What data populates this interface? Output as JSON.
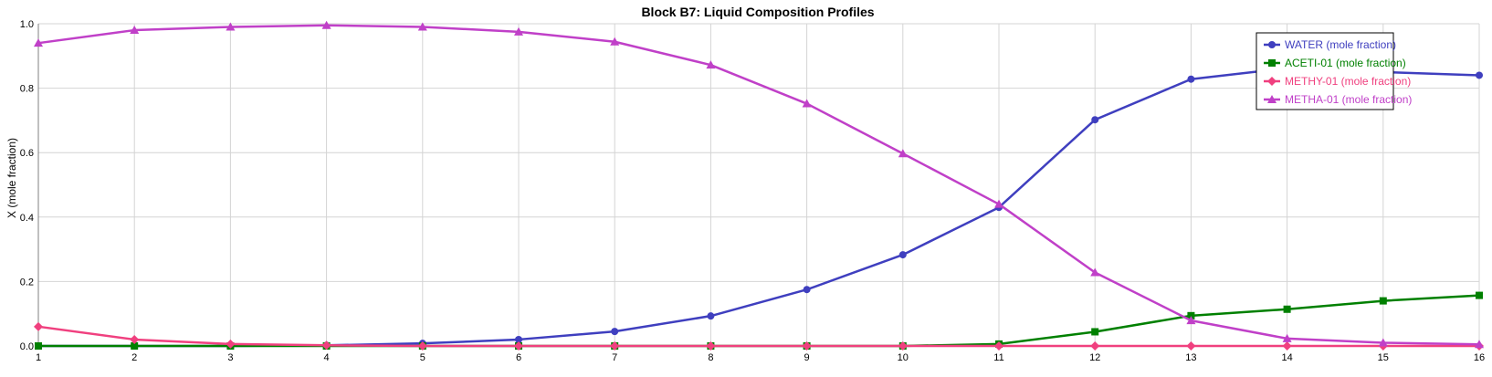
{
  "chart_data": {
    "type": "line",
    "title": "Block B7: Liquid Composition Profiles",
    "xlabel": "",
    "ylabel": "X (mole fraction)",
    "x": [
      1,
      2,
      3,
      4,
      5,
      6,
      7,
      8,
      9,
      10,
      11,
      12,
      13,
      14,
      15,
      16
    ],
    "xlim": [
      1,
      16
    ],
    "ylim": [
      0,
      1
    ],
    "yticks": [
      "0.0",
      "0.2",
      "0.4",
      "0.6",
      "0.8",
      "1.0"
    ],
    "grid": true,
    "legend_position": "top-right",
    "series": [
      {
        "name": "WATER (mole fraction)",
        "color": "#3f3fbf",
        "marker": "circle",
        "values": [
          0.0,
          0.0,
          0.0,
          0.002,
          0.008,
          0.02,
          0.045,
          0.093,
          0.175,
          0.283,
          0.43,
          0.702,
          0.828,
          0.862,
          0.85,
          0.84
        ]
      },
      {
        "name": "ACETI-01 (mole fraction)",
        "color": "#008000",
        "marker": "square",
        "values": [
          0.0,
          0.0,
          0.0,
          0.0,
          0.0,
          0.0,
          0.0,
          0.0,
          0.0,
          0.0,
          0.006,
          0.044,
          0.094,
          0.114,
          0.14,
          0.157
        ]
      },
      {
        "name": "METHY-01 (mole fraction)",
        "color": "#f0407f",
        "marker": "diamond",
        "values": [
          0.06,
          0.02,
          0.006,
          0.002,
          0.0,
          0.0,
          0.0,
          0.0,
          0.0,
          0.0,
          0.0,
          0.0,
          0.0,
          0.0,
          0.0,
          0.0
        ]
      },
      {
        "name": "METHA-01 (mole fraction)",
        "color": "#c040c8",
        "marker": "triangle",
        "values": [
          0.94,
          0.98,
          0.99,
          0.995,
          0.99,
          0.975,
          0.944,
          0.872,
          0.752,
          0.597,
          0.44,
          0.228,
          0.079,
          0.023,
          0.01,
          0.005
        ]
      }
    ]
  }
}
